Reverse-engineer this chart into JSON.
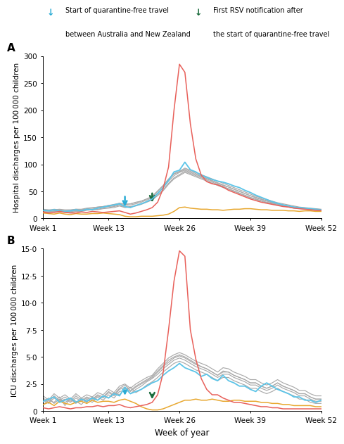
{
  "panel_A_label": "A",
  "panel_B_label": "B",
  "xlabel": "Week of year",
  "ylabel_A": "Hospital discharges per 100 000 children",
  "ylabel_B": "ICU discharges per 100 000 children",
  "xtick_positions": [
    1,
    13,
    26,
    39,
    52
  ],
  "xtick_labels": [
    "Week 1",
    "Week 13",
    "Week 26",
    "Week 39",
    "Week 52"
  ],
  "ylim_A": [
    0,
    300
  ],
  "ylim_B": [
    0,
    15.0
  ],
  "yticks_A": [
    0,
    50,
    100,
    150,
    200,
    250,
    300
  ],
  "yticks_B": [
    0,
    2.5,
    5.0,
    7.5,
    10.0,
    12.5,
    15.0
  ],
  "ytick_labels_B": [
    "0",
    "2·5",
    "5·0",
    "7·5",
    "10·0",
    "12·5",
    "15·0"
  ],
  "arrow_cyan_week": 16,
  "arrow_green_week": 21,
  "arrow_cyan_color": "#29ABD4",
  "arrow_green_color": "#1A6B3C",
  "legend_cyan_label1": "Start of quarantine-free travel",
  "legend_cyan_label2": "between Australia and New Zealand",
  "legend_green_label1": "First RSV notification after",
  "legend_green_label2": "the start of quarantine-free travel",
  "color_red": "#E8605A",
  "color_blue": "#5BC4E8",
  "color_orange": "#E8A830",
  "color_gray": "#AAAAAA",
  "weeks": [
    1,
    2,
    3,
    4,
    5,
    6,
    7,
    8,
    9,
    10,
    11,
    12,
    13,
    14,
    15,
    16,
    17,
    18,
    19,
    20,
    21,
    22,
    23,
    24,
    25,
    26,
    27,
    28,
    29,
    30,
    31,
    32,
    33,
    34,
    35,
    36,
    37,
    38,
    39,
    40,
    41,
    42,
    43,
    44,
    45,
    46,
    47,
    48,
    49,
    50,
    51,
    52
  ],
  "A_red": [
    12,
    10,
    11,
    13,
    11,
    10,
    10,
    12,
    11,
    13,
    12,
    11,
    12,
    13,
    14,
    11,
    8,
    10,
    13,
    16,
    20,
    30,
    55,
    95,
    200,
    285,
    270,
    175,
    110,
    80,
    68,
    64,
    62,
    58,
    52,
    48,
    44,
    40,
    36,
    33,
    30,
    28,
    26,
    24,
    22,
    21,
    19,
    18,
    17,
    16,
    15,
    15
  ],
  "A_blue": [
    15,
    14,
    16,
    14,
    13,
    14,
    16,
    14,
    17,
    16,
    19,
    21,
    23,
    25,
    27,
    22,
    20,
    24,
    27,
    31,
    36,
    46,
    57,
    70,
    86,
    89,
    104,
    90,
    86,
    80,
    76,
    72,
    69,
    67,
    64,
    60,
    57,
    52,
    48,
    43,
    39,
    35,
    31,
    28,
    25,
    23,
    21,
    20,
    19,
    18,
    17,
    16
  ],
  "A_orange": [
    10,
    9,
    8,
    10,
    8,
    7,
    9,
    8,
    8,
    9,
    9,
    10,
    9,
    8,
    7,
    4,
    3,
    3,
    4,
    4,
    4,
    5,
    6,
    8,
    13,
    20,
    21,
    19,
    18,
    17,
    17,
    16,
    16,
    15,
    16,
    17,
    17,
    18,
    18,
    17,
    16,
    16,
    15,
    15,
    15,
    14,
    14,
    13,
    14,
    14,
    13,
    13
  ],
  "A_gray1": [
    16,
    15,
    17,
    16,
    14,
    15,
    17,
    16,
    18,
    19,
    21,
    22,
    24,
    25,
    28,
    26,
    27,
    30,
    32,
    36,
    40,
    50,
    60,
    72,
    82,
    86,
    91,
    87,
    83,
    78,
    74,
    70,
    66,
    62,
    58,
    54,
    50,
    46,
    42,
    38,
    35,
    32,
    29,
    27,
    25,
    23,
    21,
    20,
    19,
    18,
    17,
    16
  ],
  "A_gray2": [
    13,
    12,
    14,
    14,
    12,
    13,
    14,
    14,
    16,
    17,
    17,
    19,
    20,
    22,
    24,
    21,
    22,
    24,
    27,
    31,
    35,
    43,
    53,
    65,
    75,
    81,
    87,
    83,
    79,
    75,
    71,
    67,
    63,
    59,
    55,
    51,
    47,
    43,
    39,
    36,
    33,
    30,
    28,
    26,
    24,
    21,
    20,
    19,
    18,
    17,
    16,
    15
  ],
  "A_gray3": [
    14,
    14,
    13,
    15,
    14,
    12,
    15,
    15,
    17,
    17,
    19,
    21,
    22,
    23,
    26,
    24,
    25,
    27,
    30,
    34,
    38,
    47,
    57,
    69,
    79,
    85,
    89,
    85,
    81,
    77,
    73,
    69,
    65,
    61,
    58,
    54,
    50,
    46,
    42,
    39,
    36,
    33,
    30,
    27,
    25,
    23,
    21,
    20,
    19,
    18,
    17,
    16
  ],
  "A_gray4": [
    11,
    12,
    13,
    12,
    12,
    11,
    13,
    13,
    15,
    16,
    16,
    18,
    19,
    20,
    23,
    20,
    21,
    23,
    26,
    30,
    34,
    42,
    51,
    63,
    73,
    79,
    85,
    81,
    77,
    73,
    69,
    65,
    61,
    57,
    54,
    50,
    46,
    42,
    38,
    35,
    32,
    29,
    27,
    25,
    23,
    21,
    19,
    18,
    17,
    16,
    15,
    14
  ],
  "A_gray5": [
    17,
    16,
    16,
    17,
    16,
    16,
    17,
    17,
    19,
    20,
    21,
    22,
    24,
    26,
    28,
    26,
    27,
    29,
    32,
    36,
    41,
    51,
    61,
    73,
    83,
    87,
    93,
    89,
    85,
    81,
    77,
    73,
    69,
    65,
    61,
    57,
    53,
    49,
    45,
    41,
    38,
    35,
    32,
    29,
    27,
    25,
    23,
    21,
    20,
    19,
    18,
    17
  ],
  "B_red": [
    0.3,
    0.2,
    0.3,
    0.4,
    0.3,
    0.2,
    0.3,
    0.3,
    0.4,
    0.4,
    0.5,
    0.4,
    0.5,
    0.5,
    0.6,
    0.4,
    0.3,
    0.4,
    0.5,
    0.6,
    0.8,
    1.5,
    3.5,
    7.5,
    12.0,
    14.8,
    14.3,
    7.5,
    4.8,
    3.0,
    2.0,
    1.5,
    1.5,
    1.2,
    1.0,
    0.8,
    0.8,
    0.7,
    0.6,
    0.5,
    0.4,
    0.4,
    0.3,
    0.3,
    0.2,
    0.2,
    0.2,
    0.2,
    0.2,
    0.2,
    0.2,
    0.2
  ],
  "B_blue": [
    0.9,
    1.1,
    1.3,
    0.8,
    1.0,
    1.2,
    0.8,
    1.1,
    0.9,
    1.2,
    1.0,
    1.4,
    1.2,
    1.6,
    1.4,
    2.2,
    1.6,
    1.8,
    2.0,
    2.3,
    2.6,
    2.8,
    3.3,
    3.7,
    4.0,
    4.4,
    4.0,
    3.8,
    3.6,
    3.2,
    3.4,
    3.0,
    2.8,
    3.3,
    2.8,
    2.6,
    2.3,
    2.3,
    2.0,
    1.8,
    2.3,
    2.6,
    2.3,
    2.0,
    1.8,
    1.6,
    1.3,
    1.3,
    1.0,
    1.0,
    0.8,
    1.0
  ],
  "B_orange": [
    0.6,
    0.8,
    0.5,
    0.9,
    0.7,
    0.6,
    0.8,
    0.9,
    0.7,
    1.0,
    0.8,
    0.9,
    0.9,
    0.8,
    1.0,
    1.1,
    0.9,
    0.7,
    0.4,
    0.2,
    0.1,
    0.1,
    0.2,
    0.4,
    0.6,
    0.8,
    1.0,
    1.0,
    1.1,
    1.0,
    1.0,
    1.1,
    1.0,
    0.9,
    0.9,
    1.0,
    1.0,
    0.9,
    0.9,
    0.9,
    0.8,
    0.8,
    0.7,
    0.7,
    0.6,
    0.6,
    0.5,
    0.5,
    0.5,
    0.5,
    0.4,
    0.4
  ],
  "B_gray1": [
    1.2,
    0.8,
    1.4,
    1.0,
    1.3,
    0.9,
    1.4,
    1.0,
    1.3,
    1.1,
    1.5,
    1.3,
    1.8,
    1.5,
    2.1,
    2.4,
    1.9,
    2.3,
    2.6,
    2.9,
    3.2,
    3.7,
    4.2,
    4.7,
    5.0,
    5.2,
    5.0,
    4.7,
    4.4,
    4.1,
    3.9,
    3.6,
    3.3,
    3.7,
    3.6,
    3.3,
    3.1,
    2.9,
    2.6,
    2.6,
    2.3,
    2.1,
    2.3,
    2.6,
    2.3,
    2.1,
    1.9,
    1.6,
    1.6,
    1.3,
    1.1,
    1.1
  ],
  "B_gray2": [
    0.9,
    1.2,
    0.7,
    1.1,
    0.8,
    1.1,
    0.7,
    1.2,
    0.8,
    1.3,
    1.0,
    1.4,
    1.2,
    1.7,
    1.5,
    2.1,
    1.6,
    2.0,
    2.3,
    2.7,
    3.0,
    3.4,
    3.9,
    4.3,
    4.7,
    4.9,
    4.7,
    4.4,
    4.1,
    3.9,
    3.7,
    3.4,
    3.1,
    3.4,
    3.4,
    3.1,
    2.9,
    2.7,
    2.4,
    2.4,
    2.1,
    1.9,
    2.1,
    2.4,
    2.1,
    1.9,
    1.7,
    1.4,
    1.4,
    1.1,
    0.9,
    0.9
  ],
  "B_gray3": [
    0.6,
    1.0,
    0.8,
    1.3,
    0.5,
    1.2,
    0.9,
    0.6,
    1.1,
    0.8,
    1.3,
    1.0,
    1.5,
    1.2,
    1.8,
    1.9,
    2.2,
    1.7,
    2.0,
    2.4,
    2.7,
    3.1,
    3.6,
    4.0,
    4.4,
    4.6,
    4.4,
    4.1,
    3.8,
    3.6,
    3.4,
    3.1,
    2.8,
    3.1,
    3.1,
    2.8,
    2.6,
    2.4,
    2.1,
    2.1,
    1.8,
    1.6,
    1.8,
    2.1,
    1.8,
    1.6,
    1.4,
    1.1,
    1.1,
    0.8,
    0.7,
    0.7
  ],
  "B_gray4": [
    1.4,
    1.0,
    1.6,
    1.2,
    1.5,
    1.1,
    1.6,
    1.2,
    1.5,
    1.3,
    1.7,
    1.5,
    2.0,
    1.7,
    2.3,
    2.5,
    2.1,
    2.5,
    2.8,
    3.1,
    3.3,
    3.9,
    4.4,
    4.9,
    5.2,
    5.4,
    5.2,
    4.9,
    4.6,
    4.4,
    4.2,
    3.9,
    3.6,
    4.0,
    3.9,
    3.6,
    3.4,
    3.2,
    2.9,
    2.9,
    2.6,
    2.4,
    2.6,
    2.9,
    2.6,
    2.4,
    2.2,
    1.9,
    1.9,
    1.6,
    1.4,
    1.4
  ],
  "B_gray5": [
    1.0,
    0.7,
    1.2,
    0.9,
    1.1,
    0.8,
    1.2,
    0.9,
    1.2,
    1.0,
    1.4,
    1.2,
    1.7,
    1.4,
    2.0,
    2.2,
    1.8,
    2.2,
    2.5,
    2.8,
    3.1,
    3.6,
    4.1,
    4.5,
    4.9,
    5.1,
    4.9,
    4.6,
    4.3,
    4.1,
    3.9,
    3.6,
    3.3,
    3.6,
    3.6,
    3.3,
    3.1,
    2.9,
    2.6,
    2.6,
    2.3,
    2.1,
    2.3,
    2.6,
    2.3,
    2.1,
    1.9,
    1.6,
    1.6,
    1.3,
    1.1,
    1.1
  ]
}
